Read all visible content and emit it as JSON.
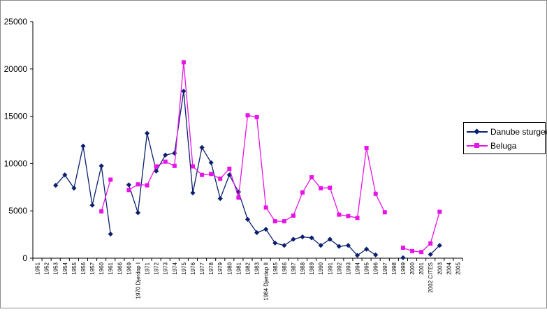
{
  "chart_data": {
    "type": "line",
    "title": "",
    "xlabel": "",
    "ylabel": "",
    "ylim": [
      0,
      25000
    ],
    "yticks": [
      0,
      5000,
      10000,
      15000,
      20000,
      25000
    ],
    "grid": false,
    "legend_position": "right",
    "categories": [
      "1951",
      "1952",
      "1953",
      "1954",
      "1955",
      "1956",
      "1957",
      "1960",
      "1961",
      "1966",
      "1969",
      "1970 Djerdap I",
      "1971",
      "1972",
      "1973",
      "1974",
      "1975",
      "1976",
      "1977",
      "1978",
      "1979",
      "1980",
      "1981",
      "1982",
      "1983",
      "1984 Djerdap II",
      "1985",
      "1986",
      "1987",
      "1988",
      "1989",
      "1990",
      "1991",
      "1992",
      "1993",
      "1994",
      "1995",
      "1996",
      "1997",
      "1998",
      "1999",
      "2000",
      "2001",
      "2002 CITES",
      "2003",
      "2004",
      "2005"
    ],
    "series": [
      {
        "name": "Danube sturgeon",
        "color": "#0a1f6e",
        "marker": "diamond",
        "values": [
          null,
          null,
          7700,
          8800,
          7400,
          11850,
          5600,
          9750,
          2550,
          null,
          7750,
          4800,
          13200,
          9200,
          10900,
          11100,
          17650,
          6900,
          11700,
          10100,
          6300,
          8800,
          7000,
          4100,
          2700,
          3050,
          1600,
          1350,
          2000,
          2250,
          2150,
          1350,
          2000,
          1250,
          1350,
          300,
          950,
          350,
          null,
          null,
          50,
          null,
          null,
          400,
          1350,
          null,
          null
        ]
      },
      {
        "name": "Beluga",
        "color": "#e614e6",
        "marker": "square",
        "values": [
          null,
          null,
          null,
          null,
          null,
          null,
          null,
          4950,
          8300,
          null,
          7200,
          7800,
          7700,
          9700,
          10200,
          9750,
          20700,
          9700,
          8800,
          8900,
          8400,
          9450,
          6400,
          15100,
          14900,
          5350,
          3900,
          3900,
          4500,
          6950,
          8550,
          7400,
          7450,
          4600,
          4450,
          4250,
          11650,
          6800,
          4850,
          null,
          1100,
          750,
          650,
          1550,
          4900,
          null,
          null
        ]
      }
    ]
  },
  "legend": {
    "items": [
      {
        "label": "Danube sturgeon",
        "color": "#0a1f6e",
        "marker": "diamond"
      },
      {
        "label": "Beluga",
        "color": "#e614e6",
        "marker": "square"
      }
    ]
  }
}
